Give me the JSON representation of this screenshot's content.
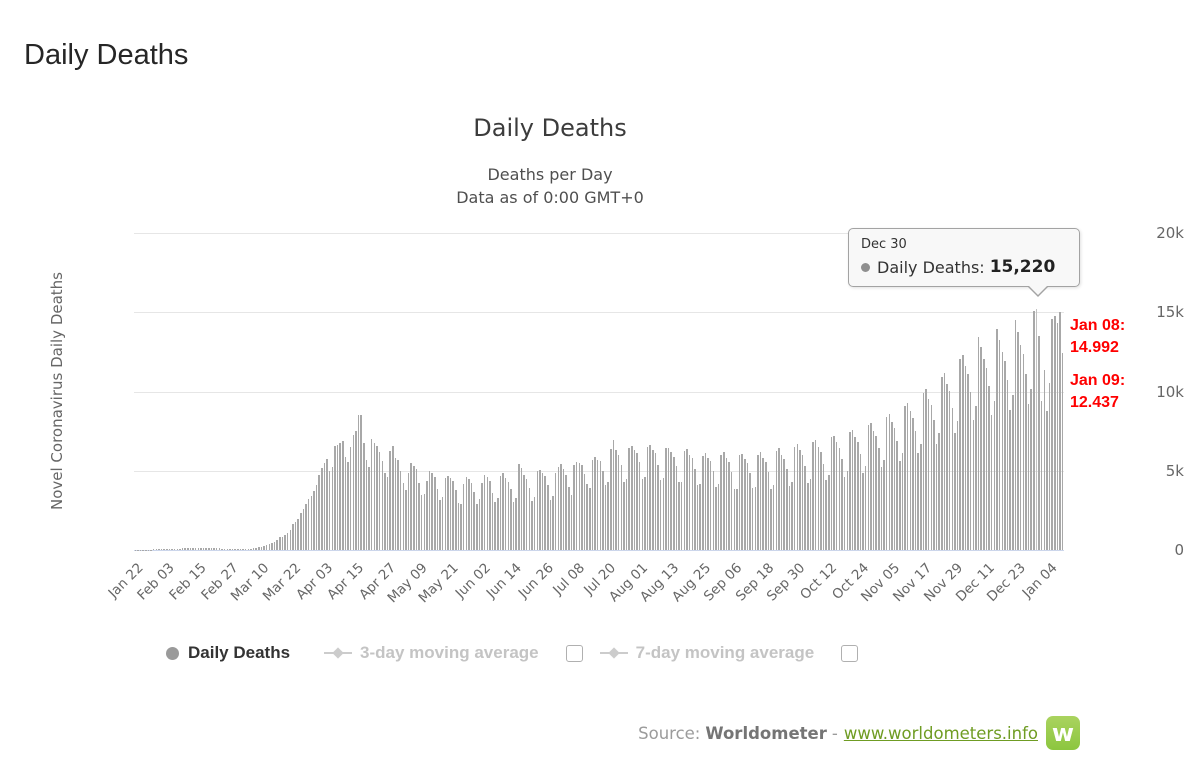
{
  "page": {
    "title": "Daily Deaths"
  },
  "chart": {
    "title": "Daily Deaths",
    "subtitle1": "Deaths per Day",
    "subtitle2": "Data as of 0:00 GMT+0",
    "y_axis_title": "Novel Coronavirus Daily Deaths"
  },
  "tooltip": {
    "header": "Dec 30",
    "series": "Daily Deaths:",
    "value": "15,220"
  },
  "annotations": {
    "a1_line1": "Jan 08:",
    "a1_line2": "14.992",
    "a2_line1": "Jan 09:",
    "a2_line2": "12.437",
    "color": "#ff0000"
  },
  "legend": {
    "items": [
      {
        "label": "Daily Deaths",
        "active": true,
        "marker": "circle"
      },
      {
        "label": "3-day moving average",
        "active": false,
        "marker": "line-diamond",
        "checkbox": "unchecked"
      },
      {
        "label": "7-day moving average",
        "active": false,
        "marker": "line-diamond",
        "checkbox": "unchecked"
      }
    ]
  },
  "source": {
    "prefix": "Source:",
    "name": "Worldometer",
    "separator": "-",
    "link": "www.worldometers.info",
    "logo_letter": "w",
    "logo_color": "#8cc63f",
    "link_color": "#6f9c23"
  },
  "chart_data": {
    "type": "bar",
    "title": "Daily Deaths",
    "subtitle": "Deaths per Day — Data as of 0:00 GMT+0",
    "xlabel": "",
    "ylabel": "Novel Coronavirus Daily Deaths",
    "ylim": [
      0,
      20000
    ],
    "y_tick_values": [
      0,
      5000,
      10000,
      15000,
      20000
    ],
    "y_tick_labels": [
      "0",
      "5k",
      "10k",
      "15k",
      "20k"
    ],
    "grid": true,
    "legend_position": "bottom",
    "bar_color": "#a8a8a8",
    "grid_color": "#e6e6e6",
    "axis_line_color": "#ccd6eb",
    "x_start": "Jan 22",
    "x_end": "Jan 09",
    "x_tick_interval_days": 12,
    "x_tick_labels": [
      "Jan 22",
      "Feb 03",
      "Feb 15",
      "Feb 27",
      "Mar 10",
      "Mar 22",
      "Apr 03",
      "Apr 15",
      "Apr 27",
      "May 09",
      "May 21",
      "Jun 02",
      "Jun 14",
      "Jun 26",
      "Jul 08",
      "Jul 20",
      "Aug 01",
      "Aug 13",
      "Aug 25",
      "Sep 06",
      "Sep 18",
      "Sep 30",
      "Oct 12",
      "Oct 24",
      "Nov 05",
      "Nov 17",
      "Nov 29",
      "Dec 11",
      "Dec 23",
      "Jan 04"
    ],
    "series_name": "Daily Deaths",
    "hidden_series": [
      "3-day moving average",
      "7-day moving average"
    ],
    "highlighted_point": {
      "index": 343,
      "label": "Dec 30",
      "value": 15220
    },
    "callouts": [
      {
        "label": "Jan 08",
        "value": 14992
      },
      {
        "label": "Jan 09",
        "value": 12437
      }
    ],
    "values": [
      9,
      11,
      16,
      15,
      24,
      26,
      26,
      38,
      43,
      46,
      45,
      57,
      64,
      66,
      72,
      73,
      86,
      89,
      97,
      108,
      97,
      146,
      121,
      143,
      142,
      105,
      98,
      136,
      114,
      118,
      109,
      97,
      150,
      71,
      52,
      78,
      64,
      63,
      88,
      58,
      72,
      74,
      81,
      86,
      91,
      105,
      102,
      186,
      217,
      272,
      330,
      349,
      438,
      522,
      608,
      793,
      805,
      963,
      1087,
      1289,
      1612,
      1738,
      1942,
      2338,
      2580,
      2873,
      3199,
      3394,
      3742,
      4080,
      4720,
      5167,
      5480,
      5744,
      4992,
      5229,
      6582,
      6634,
      6769,
      6889,
      5861,
      5542,
      6489,
      7263,
      7481,
      8487,
      8522,
      6739,
      5663,
      5256,
      6997,
      6733,
      6574,
      6166,
      5613,
      4876,
      4614,
      6258,
      6533,
      5826,
      5663,
      4968,
      4203,
      3799,
      4879,
      5516,
      5313,
      5119,
      4220,
      3460,
      3559,
      4367,
      4972,
      4858,
      4593,
      3870,
      3164,
      3361,
      4537,
      4696,
      4562,
      4360,
      3779,
      2972,
      2899,
      4150,
      4631,
      4464,
      4239,
      3683,
      2921,
      3201,
      4255,
      4737,
      4591,
      4346,
      3605,
      3020,
      3256,
      4696,
      4854,
      4575,
      4296,
      3842,
      3020,
      3301,
      5401,
      5173,
      4725,
      4465,
      3900,
      3070,
      3362,
      5010,
      5067,
      4836,
      4661,
      4131,
      3140,
      3406,
      4854,
      5230,
      5437,
      5123,
      4751,
      3977,
      3441,
      5370,
      5559,
      5470,
      5336,
      4810,
      4149,
      3922,
      5694,
      5852,
      5706,
      5588,
      4981,
      4106,
      4264,
      6399,
      6921,
      6293,
      5971,
      5384,
      4306,
      4489,
      6431,
      6549,
      6335,
      6128,
      5532,
      4505,
      4634,
      6472,
      6605,
      6339,
      6093,
      5370,
      4398,
      4558,
      6440,
      6435,
      6185,
      5894,
      5320,
      4262,
      4290,
      6228,
      6350,
      6007,
      5834,
      5110,
      4098,
      4152,
      5963,
      6140,
      5832,
      5587,
      4987,
      3953,
      4134,
      6010,
      6153,
      5827,
      5536,
      4940,
      3868,
      3873,
      5983,
      6079,
      5730,
      5473,
      4855,
      3906,
      3993,
      5982,
      6153,
      5801,
      5549,
      4906,
      3876,
      4096,
      6271,
      6412,
      6020,
      5772,
      5100,
      4059,
      4312,
      6514,
      6672,
      6292,
      5969,
      5302,
      4237,
      4509,
      6793,
      6910,
      6489,
      6175,
      5442,
      4399,
      4709,
      7099,
      7215,
      6789,
      6463,
      5730,
      4602,
      4969,
      7438,
      7559,
      7110,
      6791,
      6043,
      4882,
      5281,
      7872,
      8011,
      7525,
      7188,
      6420,
      5211,
      5677,
      8409,
      8588,
      8071,
      7713,
      6904,
      5622,
      6145,
      9111,
      9298,
      8740,
      8356,
      7484,
      6120,
      6712,
      9937,
      10144,
      9537,
      9118,
      8172,
      6702,
      7369,
      10914,
      11141,
      10473,
      10014,
      8988,
      7394,
      8159,
      12081,
      12334,
      11594,
      11086,
      9949,
      8203,
      9067,
      13434,
      12805,
      12040,
      11512,
      10332,
      8532,
      9432,
      13966,
      13278,
      12485,
      11938,
      10714,
      8859,
      9796,
      14503,
      13786,
      12963,
      12395,
      11125,
      9208,
      10183,
      15074,
      15220,
      13500,
      9423,
      11385,
      8776,
      10536,
      14581,
      14762,
      14333,
      14992,
      12437
    ]
  }
}
